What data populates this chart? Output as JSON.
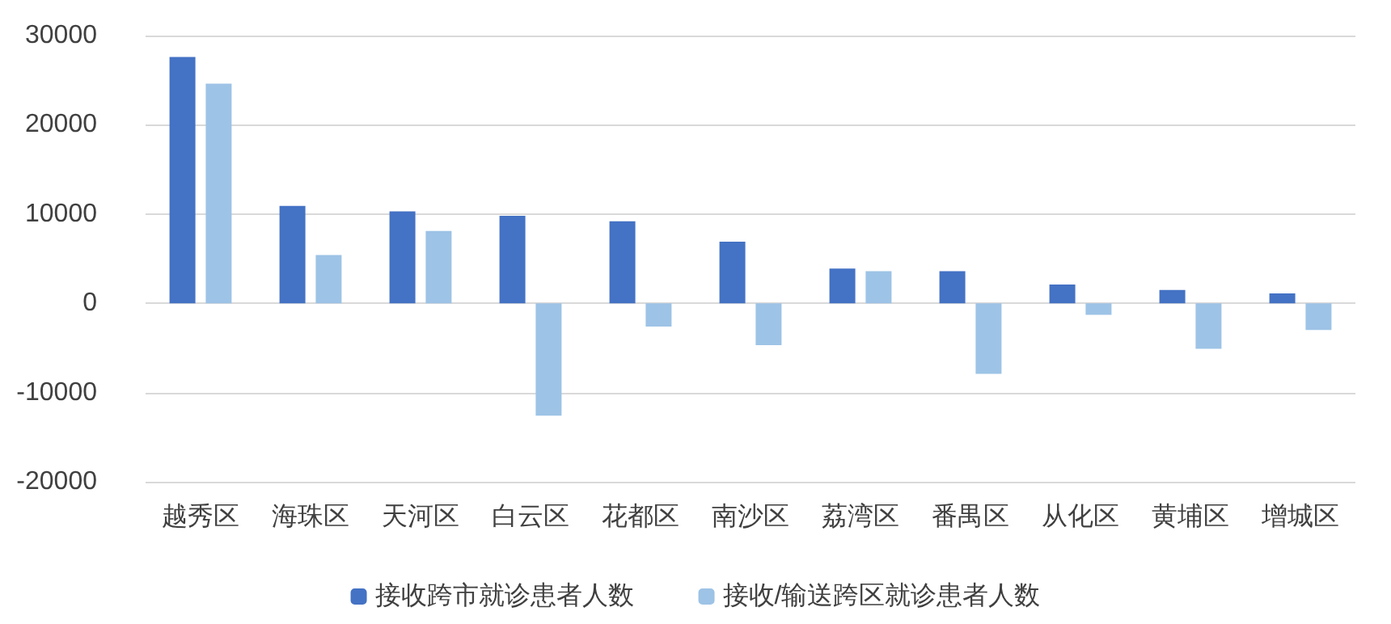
{
  "chart_data": {
    "type": "bar",
    "categories": [
      "越秀区",
      "海珠区",
      "天河区",
      "白云区",
      "花都区",
      "南沙区",
      "荔湾区",
      "番禺区",
      "从化区",
      "黄埔区",
      "增城区"
    ],
    "series": [
      {
        "name": "接收跨市就诊患者人数",
        "color": "#4472c4",
        "values": [
          27600,
          10900,
          10300,
          9800,
          9200,
          6900,
          3900,
          3600,
          2100,
          1500,
          1100
        ]
      },
      {
        "name": "接收/输送跨区就诊患者人数",
        "color": "#9dc3e6",
        "values": [
          24600,
          5400,
          8100,
          -12600,
          -2600,
          -4700,
          3600,
          -7900,
          -1300,
          -5100,
          -3000
        ]
      }
    ],
    "ylim": [
      -20000,
      30000
    ],
    "yticks": [
      -20000,
      -10000,
      0,
      10000,
      20000,
      30000
    ],
    "grid": "y",
    "legend": "bottom"
  }
}
